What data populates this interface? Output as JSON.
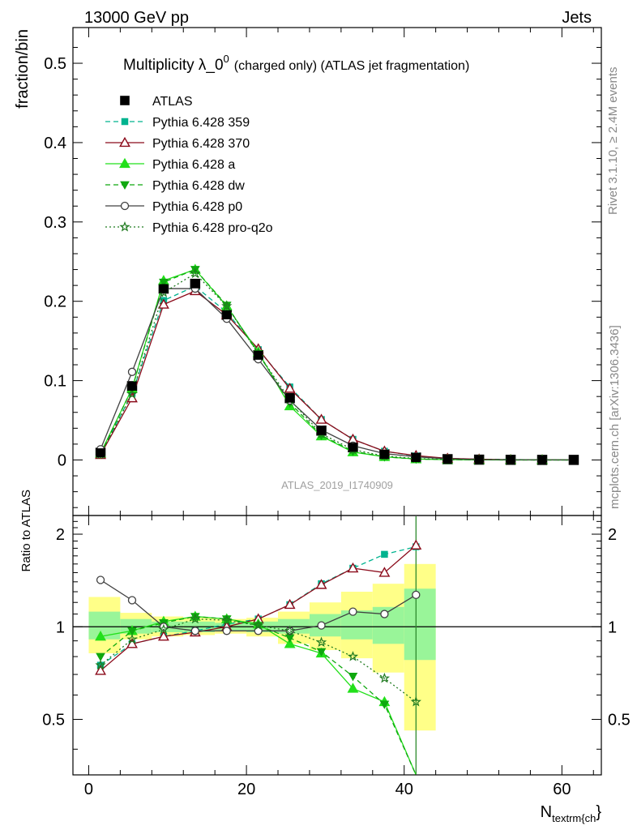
{
  "header": {
    "left": "13000 GeV pp",
    "right": "Jets"
  },
  "side_text": {
    "rivet": "Rivet 3.1.10, ≥ 2.4M events",
    "mcplots": "mcplots.cern.ch [arXiv:1306.3436]"
  },
  "watermark": "ATLAS_2019_I1740909",
  "chart_data": [
    {
      "type": "scatter",
      "title_main": "Multiplicity λ_0",
      "title_sup": "0",
      "title_rest": "(charged only) (ATLAS jet fragmentation)",
      "ylabel": "fraction/bin",
      "xlabel_main": "N",
      "xlabel_sub": "textrm{ch",
      "xlabel_close": "}",
      "xlim": [
        -2,
        65
      ],
      "ylim": [
        -0.07,
        0.545
      ],
      "yticks": [
        0,
        0.1,
        0.2,
        0.3,
        0.4,
        0.5
      ],
      "ytick_labels": [
        "0",
        "0.1",
        "0.2",
        "0.3",
        "0.4",
        "0.5"
      ],
      "x": [
        1.5,
        5.5,
        9.5,
        13.5,
        17.5,
        21.5,
        25.5,
        29.5,
        33.5,
        37.5,
        41.5,
        45.5,
        49.5,
        53.5,
        57.5,
        61.5
      ],
      "legend_position": "top-left",
      "series": [
        {
          "name": "ATLAS",
          "color": "#000000",
          "marker": "square",
          "line": "none",
          "values": [
            0.009,
            0.093,
            0.216,
            0.222,
            0.183,
            0.132,
            0.078,
            0.037,
            0.016,
            0.007,
            0.003,
            0.001,
            0.0004,
            0.0002,
            0.0001,
            0.0001
          ]
        },
        {
          "name": "Pythia 6.428 359",
          "color": "#00b38f",
          "marker": "filled-square",
          "line": "dashed",
          "values": [
            0.007,
            0.084,
            0.201,
            0.219,
            0.186,
            0.139,
            0.092,
            0.051,
            0.026,
            0.011,
            0.005,
            0.002,
            0.001,
            0.0005,
            0.0002,
            0.0001
          ]
        },
        {
          "name": "Pythia 6.428 370",
          "color": "#8b0a1a",
          "marker": "open-triangle",
          "line": "solid",
          "values": [
            0.0065,
            0.078,
            0.196,
            0.213,
            0.183,
            0.14,
            0.09,
            0.051,
            0.026,
            0.011,
            0.0055,
            0.002,
            0.001,
            0.0004,
            0.0002,
            0.0001
          ]
        },
        {
          "name": "Pythia 6.428 a",
          "color": "#22e01a",
          "marker": "filled-triangle",
          "line": "solid",
          "values": [
            0.0085,
            0.09,
            0.226,
            0.24,
            0.194,
            0.136,
            0.068,
            0.03,
            0.01,
            0.004,
            0.0012,
            0.0004,
            0.0001,
            5e-05,
            2e-05,
            1e-05
          ]
        },
        {
          "name": "Pythia 6.428 dw",
          "color": "#0fa80f",
          "marker": "filled-inverted-triangle",
          "line": "dashed",
          "values": [
            0.0075,
            0.09,
            0.224,
            0.24,
            0.195,
            0.134,
            0.072,
            0.031,
            0.011,
            0.004,
            0.0012,
            0.0004,
            0.0001,
            5e-05,
            2e-05,
            1e-05
          ]
        },
        {
          "name": "Pythia 6.428 p0",
          "color": "#404040",
          "marker": "open-circle",
          "line": "solid",
          "values": [
            0.0135,
            0.111,
            0.216,
            0.216,
            0.178,
            0.127,
            0.075,
            0.038,
            0.018,
            0.008,
            0.004,
            0.0015,
            0.0005,
            0.0002,
            0.0001,
            5e-05
          ]
        },
        {
          "name": "Pythia 6.428 pro-q2o",
          "color": "#1f7a1f",
          "marker": "open-star",
          "line": "dotted",
          "values": [
            0.007,
            0.083,
            0.211,
            0.235,
            0.194,
            0.134,
            0.076,
            0.033,
            0.013,
            0.005,
            0.0018,
            0.0006,
            0.0002,
            0.0001,
            5e-05,
            2e-05
          ]
        }
      ]
    },
    {
      "type": "scatter",
      "ylabel": "Ratio to ATLAS",
      "xlim": [
        -2,
        65
      ],
      "ylim": [
        0.33,
        2.3
      ],
      "ylog": true,
      "xticks": [
        0,
        20,
        40,
        60
      ],
      "xtick_labels": [
        "0",
        "20",
        "40",
        "60"
      ],
      "yticks": [
        0.5,
        1,
        2
      ],
      "ytick_labels": [
        "0.5",
        "1",
        "2"
      ],
      "x": [
        1.5,
        5.5,
        9.5,
        13.5,
        17.5,
        21.5,
        25.5,
        29.5,
        33.5,
        37.5,
        41.5
      ],
      "bands": {
        "bins": [
          [
            0,
            4
          ],
          [
            4,
            8
          ],
          [
            8,
            12
          ],
          [
            12,
            16
          ],
          [
            16,
            20
          ],
          [
            20,
            24
          ],
          [
            24,
            28
          ],
          [
            28,
            32
          ],
          [
            32,
            36
          ],
          [
            36,
            40
          ],
          [
            40,
            44
          ]
        ],
        "inner": [
          [
            0.91,
            1.12
          ],
          [
            0.95,
            1.06
          ],
          [
            0.96,
            1.04
          ],
          [
            0.96,
            1.04
          ],
          [
            0.97,
            1.03
          ],
          [
            0.96,
            1.04
          ],
          [
            0.95,
            1.06
          ],
          [
            0.93,
            1.1
          ],
          [
            0.91,
            1.13
          ],
          [
            0.88,
            1.16
          ],
          [
            0.78,
            1.33
          ]
        ],
        "outer": [
          [
            0.82,
            1.25
          ],
          [
            0.91,
            1.11
          ],
          [
            0.93,
            1.08
          ],
          [
            0.94,
            1.07
          ],
          [
            0.95,
            1.06
          ],
          [
            0.93,
            1.07
          ],
          [
            0.88,
            1.12
          ],
          [
            0.84,
            1.2
          ],
          [
            0.79,
            1.3
          ],
          [
            0.71,
            1.38
          ],
          [
            0.46,
            1.6
          ]
        ]
      },
      "series": [
        {
          "name": "Pythia 6.428 359",
          "color": "#00b38f",
          "marker": "filled-square",
          "line": "dashed",
          "values": [
            0.75,
            0.88,
            0.93,
            0.97,
            1.02,
            1.06,
            1.18,
            1.38,
            1.55,
            1.72,
            1.82
          ]
        },
        {
          "name": "Pythia 6.428 370",
          "color": "#8b0a1a",
          "marker": "open-triangle",
          "line": "solid",
          "values": [
            0.72,
            0.88,
            0.93,
            0.96,
            1.0,
            1.06,
            1.18,
            1.37,
            1.55,
            1.5,
            1.84
          ]
        },
        {
          "name": "Pythia 6.428 a",
          "color": "#22e01a",
          "marker": "filled-triangle",
          "line": "solid",
          "values": [
            0.93,
            0.97,
            1.04,
            1.08,
            1.06,
            1.02,
            0.88,
            0.82,
            0.63,
            0.57,
            0.33
          ]
        },
        {
          "name": "Pythia 6.428 dw",
          "color": "#0fa80f",
          "marker": "filled-inverted-triangle",
          "line": "dashed",
          "values": [
            0.8,
            0.97,
            1.03,
            1.08,
            1.06,
            1.01,
            0.92,
            0.83,
            0.69,
            0.56,
            0.33
          ]
        },
        {
          "name": "Pythia 6.428 p0",
          "color": "#404040",
          "marker": "open-circle",
          "line": "solid",
          "values": [
            1.42,
            1.22,
            1.0,
            0.97,
            0.97,
            0.97,
            0.97,
            1.01,
            1.12,
            1.1,
            1.27
          ]
        },
        {
          "name": "Pythia 6.428 pro-q2o",
          "color": "#1f7a1f",
          "marker": "open-star",
          "line": "dotted",
          "values": [
            0.75,
            0.91,
            0.98,
            1.06,
            1.05,
            1.01,
            0.97,
            0.89,
            0.8,
            0.68,
            0.57
          ]
        }
      ]
    }
  ]
}
